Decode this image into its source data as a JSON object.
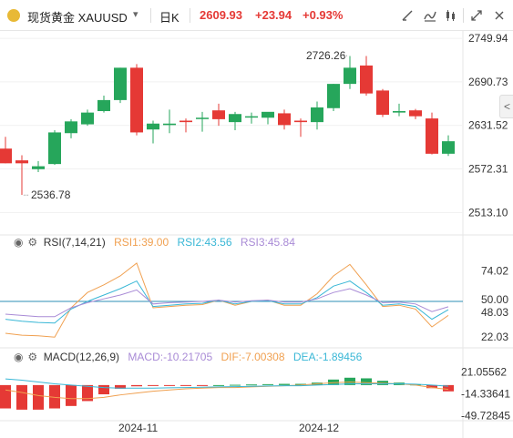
{
  "toolbar": {
    "symbol_name": "现货黄金",
    "symbol_code": "XAUUSD",
    "period": "日K",
    "price": "2609.93",
    "change": "+23.94",
    "change_pct": "+0.93%",
    "colors": {
      "up": "#e53935",
      "down": "#26a65b",
      "gold": "#e8b936"
    },
    "icons": [
      "chevron-down-icon",
      "draw-icon",
      "indicator-icon",
      "settings-icon",
      "expand-icon",
      "close-icon"
    ]
  },
  "chart_data": [
    {
      "type": "candlestick",
      "title": "",
      "ylim": [
        2490,
        2760
      ],
      "y_ticks": [
        2749.94,
        2690.73,
        2631.52,
        2572.31,
        2513.1
      ],
      "x_tick_labels": [
        "2024-11",
        "2024-12"
      ],
      "annotations": [
        {
          "text": "2726.26",
          "value": 2726.26,
          "kind": "max"
        },
        {
          "text": "2536.78",
          "value": 2536.78,
          "kind": "min"
        }
      ],
      "side_tab": "<",
      "candles": [
        {
          "o": 2600,
          "h": 2616,
          "l": 2580,
          "c": 2580
        },
        {
          "o": 2584,
          "h": 2591,
          "l": 2537,
          "c": 2580
        },
        {
          "o": 2572,
          "h": 2583,
          "l": 2568,
          "c": 2576
        },
        {
          "o": 2579,
          "h": 2625,
          "l": 2578,
          "c": 2622
        },
        {
          "o": 2621,
          "h": 2640,
          "l": 2614,
          "c": 2637
        },
        {
          "o": 2633,
          "h": 2653,
          "l": 2631,
          "c": 2649
        },
        {
          "o": 2651,
          "h": 2672,
          "l": 2649,
          "c": 2666
        },
        {
          "o": 2666,
          "h": 2710,
          "l": 2662,
          "c": 2710
        },
        {
          "o": 2710,
          "h": 2715,
          "l": 2618,
          "c": 2622
        },
        {
          "o": 2626,
          "h": 2638,
          "l": 2607,
          "c": 2634
        },
        {
          "o": 2632,
          "h": 2653,
          "l": 2621,
          "c": 2634
        },
        {
          "o": 2638,
          "h": 2641,
          "l": 2622,
          "c": 2636
        },
        {
          "o": 2641,
          "h": 2650,
          "l": 2623,
          "c": 2642
        },
        {
          "o": 2652,
          "h": 2661,
          "l": 2631,
          "c": 2640
        },
        {
          "o": 2636,
          "h": 2650,
          "l": 2625,
          "c": 2647
        },
        {
          "o": 2644,
          "h": 2649,
          "l": 2634,
          "c": 2644
        },
        {
          "o": 2642,
          "h": 2649,
          "l": 2633,
          "c": 2650
        },
        {
          "o": 2648,
          "h": 2653,
          "l": 2626,
          "c": 2632
        },
        {
          "o": 2638,
          "h": 2641,
          "l": 2616,
          "c": 2636
        },
        {
          "o": 2636,
          "h": 2664,
          "l": 2626,
          "c": 2656
        },
        {
          "o": 2655,
          "h": 2688,
          "l": 2651,
          "c": 2688
        },
        {
          "o": 2688,
          "h": 2726,
          "l": 2681,
          "c": 2710
        },
        {
          "o": 2713,
          "h": 2726,
          "l": 2672,
          "c": 2675
        },
        {
          "o": 2679,
          "h": 2681,
          "l": 2643,
          "c": 2646
        },
        {
          "o": 2649,
          "h": 2661,
          "l": 2644,
          "c": 2651
        },
        {
          "o": 2652,
          "h": 2654,
          "l": 2640,
          "c": 2644
        },
        {
          "o": 2641,
          "h": 2649,
          "l": 2592,
          "c": 2593
        },
        {
          "o": 2593,
          "h": 2618,
          "l": 2590,
          "c": 2610
        }
      ]
    },
    {
      "type": "line",
      "title": "RSI(7,14,21)",
      "ylim": [
        15,
        85
      ],
      "y_ticks": [
        74.02,
        50.0,
        48.03,
        22.03
      ],
      "reference_line": 50,
      "legend": [
        {
          "text": "RSI1:39.00",
          "color": "#f0a050"
        },
        {
          "text": "RSI2:43.56",
          "color": "#39b7d6"
        },
        {
          "text": "RSI3:45.84",
          "color": "#a98bd6"
        }
      ],
      "series": [
        {
          "color": "#f0a050",
          "values": [
            25,
            23.5,
            23,
            22,
            45,
            57,
            63,
            70,
            80,
            45,
            46,
            47,
            47.5,
            51,
            47,
            50,
            51,
            47,
            47,
            56,
            70,
            79,
            63,
            46,
            47,
            44,
            30,
            39
          ]
        },
        {
          "color": "#39b7d6",
          "values": [
            36,
            34.5,
            33.5,
            33,
            44,
            50,
            55,
            60,
            66,
            46,
            47,
            48,
            48.5,
            51,
            48,
            50,
            50.5,
            48,
            48,
            53,
            62,
            66,
            57,
            47,
            48,
            46,
            36,
            43.5
          ]
        },
        {
          "color": "#a98bd6",
          "values": [
            40,
            39,
            38,
            38,
            45,
            49,
            52,
            55,
            59,
            48,
            49,
            49.5,
            50,
            51,
            49.5,
            50.5,
            51,
            49.5,
            49.5,
            52,
            57,
            60,
            55,
            49,
            49.5,
            48,
            42,
            45.8
          ]
        }
      ]
    },
    {
      "type": "bar+line",
      "title": "MACD(12,26,9)",
      "ylim": [
        -55,
        28
      ],
      "y_ticks": [
        21.05562,
        -14.33641,
        -49.72845
      ],
      "legend": [
        {
          "text": "MACD:-10.21705",
          "color": "#a98bd6"
        },
        {
          "text": "DIF:-7.00308",
          "color": "#f0a050"
        },
        {
          "text": "DEA:-1.89456",
          "color": "#39b7d6"
        }
      ],
      "macd_bars": [
        -38,
        -40,
        -40,
        -38,
        -34,
        -26,
        -15,
        -6,
        -2,
        -1,
        -1,
        -0.5,
        -0.5,
        0,
        0.5,
        1,
        1.5,
        2,
        2,
        4,
        9,
        12,
        11,
        7,
        4,
        1,
        -5,
        -10.2
      ],
      "dif": [
        -8,
        -12,
        -17,
        -20,
        -22,
        -22,
        -20,
        -16,
        -13,
        -10,
        -8,
        -6,
        -5,
        -4,
        -4,
        -3,
        -2,
        -1,
        0,
        2,
        4,
        5,
        4,
        3,
        2,
        0,
        -4,
        -7
      ],
      "dea": [
        10,
        8,
        5,
        2,
        0,
        -2,
        -4,
        -5,
        -5,
        -5,
        -4.5,
        -4,
        -3.5,
        -3,
        -2.5,
        -2,
        -1.5,
        -1,
        -1,
        0,
        1,
        2,
        2,
        2,
        2,
        1.5,
        0,
        -1.9
      ]
    }
  ]
}
